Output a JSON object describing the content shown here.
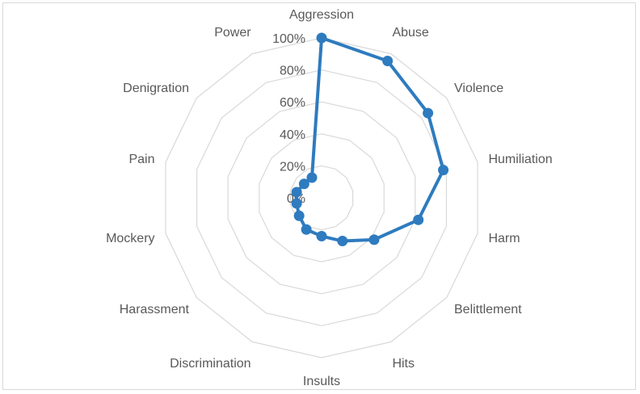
{
  "chart_data": {
    "type": "radar",
    "title": "",
    "categories": [
      "Aggression",
      "Abuse",
      "Violence",
      "Humiliation",
      "Harm",
      "Belittlement",
      "Hits",
      "Insults",
      "Discrimination",
      "Harassment",
      "Mockery",
      "Pain",
      "Denigration",
      "Power"
    ],
    "series": [
      {
        "values": [
          100,
          95,
          85,
          78,
          62,
          42,
          30,
          24,
          22,
          18,
          16,
          16,
          14,
          14
        ]
      }
    ],
    "radial_axis": {
      "min": 0,
      "max": 100,
      "tick_step": 20,
      "tick_labels": [
        "0%",
        "20%",
        "40%",
        "60%",
        "80%",
        "100%"
      ]
    },
    "grid": true,
    "legend": "none",
    "colors": {
      "series": "#2e7bbf",
      "grid": "#d9d9d9",
      "text": "#595959",
      "frame": "#d9d9d9"
    }
  }
}
